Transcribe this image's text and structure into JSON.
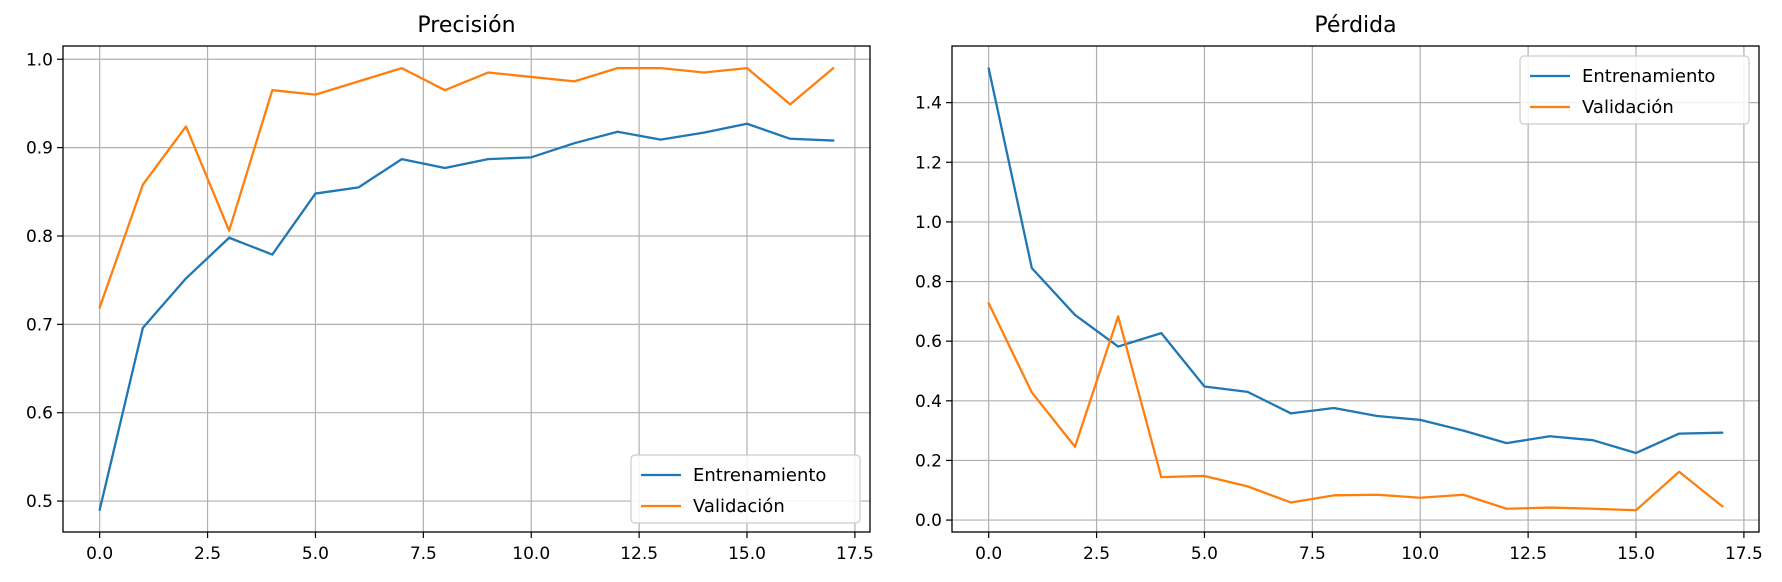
{
  "chart_data": [
    {
      "type": "line",
      "title": "Precisión",
      "xlabel": "",
      "ylabel": "",
      "xlim": [
        -0.85,
        17.85
      ],
      "ylim": [
        0.465,
        1.015
      ],
      "xticks": [
        0.0,
        2.5,
        5.0,
        7.5,
        10.0,
        12.5,
        15.0,
        17.5
      ],
      "xtick_labels": [
        "0.0",
        "2.5",
        "5.0",
        "7.5",
        "10.0",
        "12.5",
        "15.0",
        "17.5"
      ],
      "yticks": [
        0.5,
        0.6,
        0.7,
        0.8,
        0.9,
        1.0
      ],
      "ytick_labels": [
        "0.5",
        "0.6",
        "0.7",
        "0.8",
        "0.9",
        "1.0"
      ],
      "grid": true,
      "legend_position": "bottom-right",
      "x": [
        0,
        1,
        2,
        3,
        4,
        5,
        6,
        7,
        8,
        9,
        10,
        11,
        12,
        13,
        14,
        15,
        16,
        17
      ],
      "series": [
        {
          "name": "Entrenamiento",
          "color": "#1f77b4",
          "values": [
            0.49,
            0.696,
            0.752,
            0.798,
            0.779,
            0.848,
            0.855,
            0.887,
            0.877,
            0.887,
            0.889,
            0.905,
            0.918,
            0.909,
            0.917,
            0.927,
            0.91,
            0.908
          ]
        },
        {
          "name": "Validación",
          "color": "#ff7f0e",
          "values": [
            0.719,
            0.858,
            0.924,
            0.806,
            0.965,
            0.96,
            0.975,
            0.99,
            0.965,
            0.985,
            0.98,
            0.975,
            0.99,
            0.99,
            0.985,
            0.99,
            0.949,
            0.99
          ]
        }
      ]
    },
    {
      "type": "line",
      "title": "Pérdida",
      "xlabel": "",
      "ylabel": "",
      "xlim": [
        -0.85,
        17.85
      ],
      "ylim": [
        -0.04,
        1.59
      ],
      "xticks": [
        0.0,
        2.5,
        5.0,
        7.5,
        10.0,
        12.5,
        15.0,
        17.5
      ],
      "xtick_labels": [
        "0.0",
        "2.5",
        "5.0",
        "7.5",
        "10.0",
        "12.5",
        "15.0",
        "17.5"
      ],
      "yticks": [
        0.0,
        0.2,
        0.4,
        0.6,
        0.8,
        1.0,
        1.2,
        1.4
      ],
      "ytick_labels": [
        "0.0",
        "0.2",
        "0.4",
        "0.6",
        "0.8",
        "1.0",
        "1.2",
        "1.4"
      ],
      "grid": true,
      "legend_position": "top-right",
      "x": [
        0,
        1,
        2,
        3,
        4,
        5,
        6,
        7,
        8,
        9,
        10,
        11,
        12,
        13,
        14,
        15,
        16,
        17
      ],
      "series": [
        {
          "name": "Entrenamiento",
          "color": "#1f77b4",
          "values": [
            1.515,
            0.845,
            0.688,
            0.582,
            0.627,
            0.448,
            0.43,
            0.358,
            0.376,
            0.349,
            0.336,
            0.3,
            0.258,
            0.281,
            0.268,
            0.225,
            0.29,
            0.293
          ]
        },
        {
          "name": "Validación",
          "color": "#ff7f0e",
          "values": [
            0.727,
            0.428,
            0.246,
            0.683,
            0.144,
            0.148,
            0.113,
            0.059,
            0.083,
            0.085,
            0.075,
            0.085,
            0.038,
            0.042,
            0.038,
            0.033,
            0.162,
            0.046
          ]
        }
      ]
    }
  ]
}
